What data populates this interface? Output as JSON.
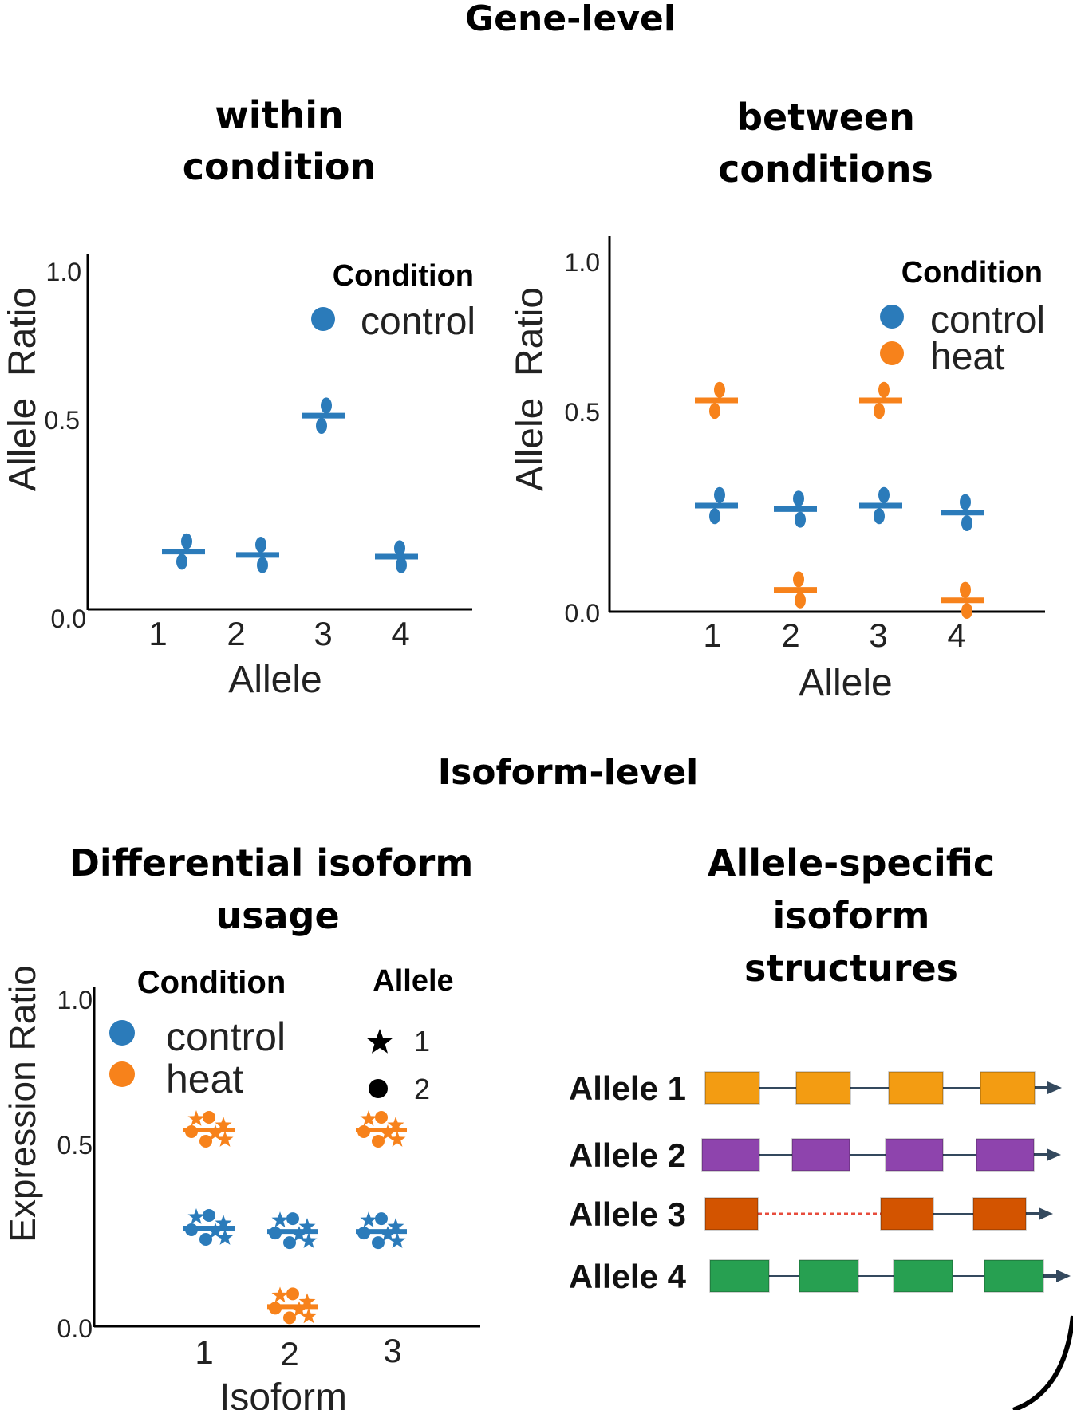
{
  "colors": {
    "control": "#2b7bba",
    "heat": "#f7821b",
    "allele1": "#f39c12",
    "allele2": "#8e44ad",
    "allele3": "#d35400",
    "allele4": "#27a051",
    "line": "#34495e"
  },
  "sections": {
    "gene": "Gene-level",
    "isoform": "Isoform-level"
  },
  "panels": {
    "within": {
      "title_line1": "within",
      "title_line2": "condition"
    },
    "between": {
      "title_line1": "between",
      "title_line2": "conditions"
    },
    "diu": {
      "title_line1": "Differential isoform",
      "title_line2": "usage"
    },
    "asis": {
      "title_line1": "Allele-specific",
      "title_line2": "isoform",
      "title_line3": "structures"
    }
  },
  "chart_data": [
    {
      "type": "scatter",
      "xlabel": "Allele",
      "ylabel": "Allele  Ratio",
      "ylim": [
        0,
        1
      ],
      "yticks": [
        "0.0",
        "0.5",
        "1.0"
      ],
      "categories": [
        "1",
        "2",
        "3",
        "4"
      ],
      "legend": {
        "title": "Condition",
        "entries": [
          "control"
        ],
        "position": "top-right"
      },
      "series": [
        {
          "name": "control",
          "median": [
            0.17,
            0.16,
            0.57,
            0.155
          ],
          "points": [
            [
              0.2,
              0.14
            ],
            [
              0.19,
              0.13
            ],
            [
              0.6,
              0.54
            ],
            [
              0.18,
              0.13
            ]
          ]
        }
      ]
    },
    {
      "type": "scatter",
      "xlabel": "Allele",
      "ylabel": "Allele  Ratio",
      "ylim": [
        0,
        1
      ],
      "yticks": [
        "0.0",
        "0.5",
        "1.0"
      ],
      "categories": [
        "1",
        "2",
        "3",
        "4"
      ],
      "legend": {
        "title": "Condition",
        "entries": [
          "control",
          "heat"
        ],
        "position": "top-right"
      },
      "series": [
        {
          "name": "control",
          "median": [
            0.3,
            0.29,
            0.3,
            0.28
          ],
          "points": [
            [
              0.33,
              0.27
            ],
            [
              0.32,
              0.26
            ],
            [
              0.33,
              0.27
            ],
            [
              0.31,
              0.25
            ]
          ]
        },
        {
          "name": "heat",
          "median": [
            0.6,
            0.06,
            0.6,
            0.03
          ],
          "points": [
            [
              0.63,
              0.57
            ],
            [
              0.09,
              0.03
            ],
            [
              0.63,
              0.57
            ],
            [
              0.06,
              0.0
            ]
          ]
        }
      ]
    },
    {
      "type": "scatter",
      "xlabel": "Isoform",
      "ylabel": "Expression Ratio",
      "ylim": [
        0,
        1
      ],
      "yticks": [
        "0.0",
        "0.5",
        "1.0"
      ],
      "categories": [
        "1",
        "2",
        "3"
      ],
      "legends": [
        {
          "title": "Condition",
          "entries": [
            "control",
            "heat"
          ],
          "position": "top-left"
        },
        {
          "title": "Allele",
          "entries": [
            "1",
            "2"
          ],
          "markers": [
            "star",
            "circle"
          ],
          "position": "top-right"
        }
      ],
      "series": [
        {
          "name": "control",
          "median": [
            0.3,
            0.29,
            0.29
          ]
        },
        {
          "name": "heat",
          "median": [
            0.6,
            0.06,
            0.6
          ]
        }
      ]
    },
    {
      "type": "diagram",
      "rows": [
        {
          "label": "Allele 1",
          "color_key": "allele1",
          "exons": 4,
          "skipped": false
        },
        {
          "label": "Allele 2",
          "color_key": "allele2",
          "exons": 4,
          "skipped": false
        },
        {
          "label": "Allele 3",
          "color_key": "allele3",
          "exons": 3,
          "skipped": true
        },
        {
          "label": "Allele 4",
          "color_key": "allele4",
          "exons": 4,
          "skipped": false
        }
      ]
    }
  ]
}
